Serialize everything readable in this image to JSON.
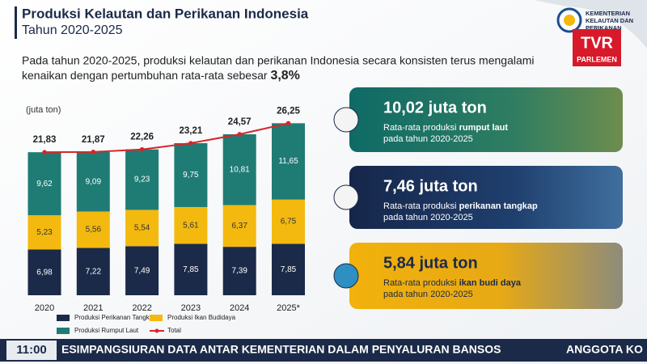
{
  "header": {
    "title": "Produksi Kelautan dan Perikanan Indonesia",
    "subtitle": "Tahun 2020-2025",
    "intro": [
      "Pada tahun 2020-2025, produksi kelautan dan perikanan Indonesia secara konsisten terus mengalami",
      "kenaikan dengan pertumbuhan rata-rata sebesar"
    ],
    "highlight": "3,8%"
  },
  "logo": {
    "ministry": [
      "KEMENTERIAN",
      "KELAUTAN DAN",
      "PERIKANAN"
    ],
    "channel": "TVR",
    "channel_sub": "PARLEMEN"
  },
  "chart_data": {
    "type": "bar",
    "stacked": true,
    "unit_label": "(juta ton)",
    "categories": [
      "2020",
      "2021",
      "2022",
      "2023",
      "2024",
      "2025*"
    ],
    "series": [
      {
        "name": "Produksi Perikanan Tangkap",
        "color": "#1b2a48",
        "label_color": "#ffffff",
        "values": [
          6.98,
          7.22,
          7.49,
          7.85,
          7.39,
          7.85
        ],
        "value_labels": [
          "6,98",
          "7,22",
          "7,49",
          "7,85",
          "7,39",
          "7,85"
        ]
      },
      {
        "name": "Produksi Ikan Budidaya",
        "color": "#f3b90f",
        "label_color": "#333333",
        "values": [
          5.23,
          5.56,
          5.54,
          5.61,
          6.37,
          6.75
        ],
        "value_labels": [
          "5,23",
          "5,56",
          "5,54",
          "5,61",
          "6,37",
          "6,75"
        ]
      },
      {
        "name": "Produksi Rumput Laut",
        "color": "#1f7c75",
        "label_color": "#ffffff",
        "values": [
          9.62,
          9.09,
          9.23,
          9.75,
          10.81,
          11.65
        ],
        "value_labels": [
          "9,62",
          "9,09",
          "9,23",
          "9,75",
          "10,81",
          "11,65"
        ]
      },
      {
        "name": "Total",
        "type": "line",
        "color": "#d7262b",
        "values": [
          21.83,
          21.87,
          22.26,
          23.21,
          24.57,
          26.25
        ],
        "value_labels": [
          "21,83",
          "21,87",
          "22,26",
          "23,21",
          "24,57",
          "26,25"
        ]
      }
    ]
  },
  "cards": [
    {
      "title": "10,02 juta ton",
      "desc": "Rata-rata produksi",
      "bold": "rumput laut",
      "line2": "pada tahun 2020-2025"
    },
    {
      "title": "7,46 juta ton",
      "desc": "Rata-rata produksi",
      "bold": "perikanan tangkap",
      "line2": "pada tahun 2020-2025"
    },
    {
      "title": "5,84 juta ton",
      "desc": "Rata-rata produksi",
      "bold": "ikan budi daya",
      "line2": "pada tahun 2020-2025"
    }
  ],
  "ticker": {
    "time": "11:00",
    "text": "ESIMPANGSIURAN DATA ANTAR KEMENTERIAN DALAM PENYALURAN BANSOS",
    "next": "ANGGOTA KO"
  }
}
